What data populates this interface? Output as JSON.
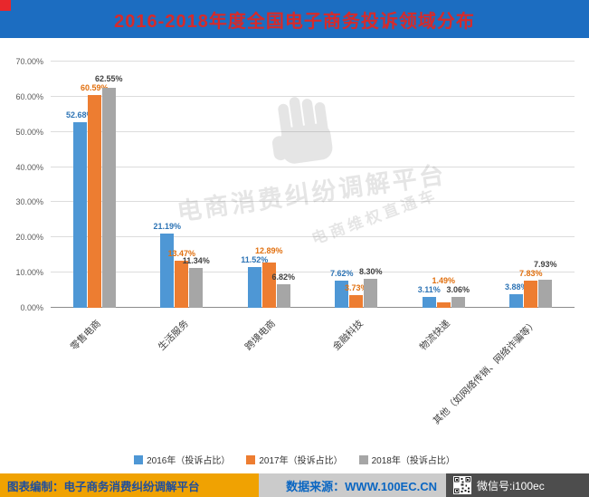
{
  "header": {
    "title": "2016-2018年度全国电子商务投诉领域分布"
  },
  "watermark": {
    "line1": "电商消费纠纷调解平台",
    "line2": "电商维权直通车"
  },
  "chart_data": {
    "type": "bar",
    "title": "2016-2018年度全国电子商务投诉领域分布",
    "categories": [
      "零售电商",
      "生活服务",
      "跨境电商",
      "金融科技",
      "物流快递",
      "其他（如网络传销、网络诈骗等）"
    ],
    "series": [
      {
        "name": "2016年（投诉占比）",
        "color": "#4e97d5",
        "label_color": "#2e74b5",
        "values": [
          52.68,
          21.19,
          11.52,
          7.62,
          3.11,
          3.88
        ]
      },
      {
        "name": "2017年（投诉占比）",
        "color": "#ed7d31",
        "label_color": "#e1700f",
        "values": [
          60.59,
          13.47,
          12.89,
          3.73,
          1.49,
          7.83
        ]
      },
      {
        "name": "2018年（投诉占比）",
        "color": "#a6a6a6",
        "label_color": "#404040",
        "values": [
          62.55,
          11.34,
          6.82,
          8.3,
          3.06,
          7.93
        ]
      }
    ],
    "ylim": [
      0,
      70
    ],
    "ytick_step": 10,
    "ytick_format": "0.00%",
    "value_label_format": "0.00%",
    "grid": true,
    "legend_position": "bottom"
  },
  "footer": {
    "credit": "图表编制：电子商务消费纠纷调解平台",
    "source": "数据来源：WWW.100EC.CN",
    "wechat": "微信号:i100ec"
  },
  "colors": {
    "banner_bg": "#1c6dc1",
    "title_text": "#d52b2b",
    "accent_red": "#e8272c",
    "credit_bg": "#f0a202",
    "credit_text": "#1f4e9c",
    "source_text": "#0a66c2",
    "bottombar_bg": "#4d4d4d"
  }
}
